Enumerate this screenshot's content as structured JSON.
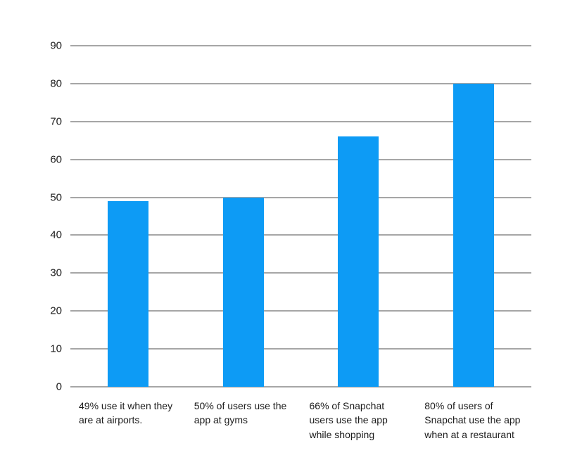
{
  "chart_data": {
    "type": "bar",
    "categories": [
      "49% use it when they are at airports.",
      "50% of users use the app at gyms",
      "66% of Snapchat users use the app while shopping",
      "80% of users of Snapchat use the app when at a restaurant"
    ],
    "values": [
      49,
      50,
      66,
      80
    ],
    "title": "",
    "xlabel": "",
    "ylabel": "",
    "ylim": [
      0,
      90
    ],
    "yticks": [
      0,
      10,
      20,
      30,
      40,
      50,
      60,
      70,
      80,
      90
    ],
    "grid": true,
    "legend": false,
    "legend_position": "none",
    "bar_color": "#0d9bf5",
    "gridline_color": "#4d4d4d",
    "text_color": "#1c1c1c",
    "background": "#ffffff"
  }
}
